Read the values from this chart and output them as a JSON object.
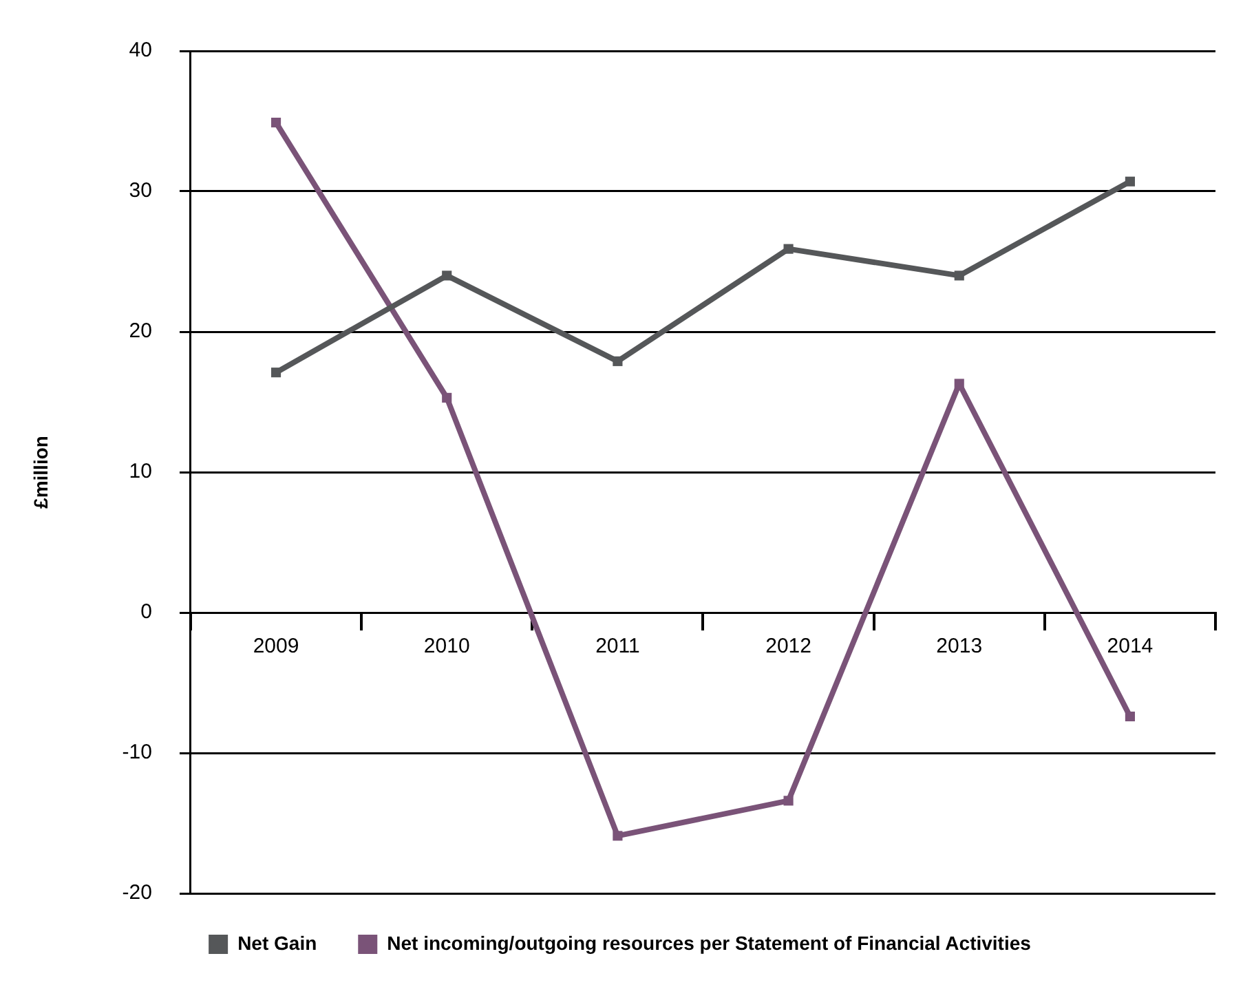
{
  "chart_data": {
    "type": "line",
    "ylabel": "£million",
    "categories": [
      "2009",
      "2010",
      "2011",
      "2012",
      "2013",
      "2014"
    ],
    "series": [
      {
        "name": "Net Gain",
        "color": "#555759",
        "values": [
          17.1,
          24.0,
          17.9,
          25.9,
          24.0,
          30.7
        ]
      },
      {
        "name": "Net incoming/outgoing resources per Statement of Financial Activities",
        "color": "#7a5378",
        "values": [
          34.9,
          15.3,
          -15.9,
          -13.4,
          16.3,
          -7.4
        ]
      }
    ],
    "ylim": [
      -20,
      40
    ],
    "yticks": [
      -20,
      -10,
      0,
      10,
      20,
      30,
      40
    ],
    "grid": "y",
    "legend": "bottom",
    "marker": "square",
    "line_style": "solid"
  }
}
